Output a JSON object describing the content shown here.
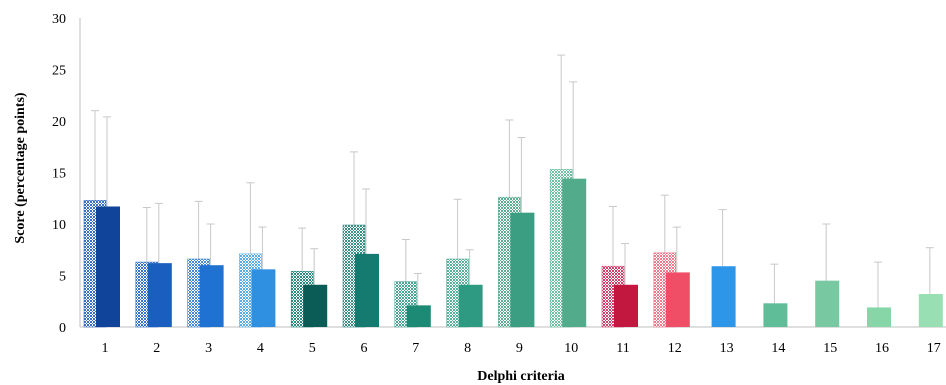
{
  "chart_data": {
    "type": "bar",
    "title": "",
    "xlabel": "Delphi criteria",
    "ylabel": "Score (percentage points)",
    "ylim": [
      0,
      30
    ],
    "yticks": [
      0,
      5,
      10,
      15,
      20,
      25,
      30
    ],
    "grid": false,
    "legend": "none",
    "error_bar_color": "#c8c8c8",
    "categories": [
      "1",
      "2",
      "3",
      "4",
      "5",
      "6",
      "7",
      "8",
      "9",
      "10",
      "11",
      "12",
      "13",
      "14",
      "15",
      "16",
      "17"
    ],
    "series": [
      {
        "pattern": "dotted",
        "values": [
          12.3,
          6.3,
          6.6,
          7.1,
          5.4,
          9.9,
          4.4,
          6.6,
          12.6,
          15.3,
          5.9,
          7.2,
          null,
          null,
          null,
          null,
          null
        ],
        "errors": [
          8.7,
          5.3,
          5.6,
          6.9,
          4.2,
          7.1,
          4.1,
          5.8,
          7.5,
          11.1,
          5.8,
          5.6,
          null,
          null,
          null,
          null,
          null
        ],
        "colors": [
          "#3a6fc4",
          "#3a73c9",
          "#4588d8",
          "#5aaee8",
          "#2d8a80",
          "#3a8f86",
          "#4aa595",
          "#5ab09a",
          "#5cae91",
          "#6fbfa3",
          "#d0426a",
          "#f07a8c",
          null,
          null,
          null,
          null,
          null
        ]
      },
      {
        "pattern": "solid",
        "values": [
          11.7,
          6.2,
          6.0,
          5.6,
          4.1,
          7.1,
          2.1,
          4.1,
          11.1,
          14.4,
          4.1,
          5.3,
          5.9,
          2.3,
          4.5,
          1.9,
          3.2
        ],
        "errors": [
          8.7,
          5.8,
          4.0,
          4.1,
          3.5,
          6.3,
          3.1,
          3.4,
          7.3,
          9.4,
          4.0,
          4.4,
          5.5,
          3.8,
          5.5,
          4.4,
          4.5
        ],
        "colors": [
          "#10439a",
          "#1a5fc0",
          "#1f72d2",
          "#2f8fe0",
          "#0b5c56",
          "#157a70",
          "#1d8a76",
          "#2e9a82",
          "#3b9e82",
          "#52ab8b",
          "#c2173f",
          "#f04e66",
          "#2d96e8",
          "#5fbd98",
          "#78c8a2",
          "#86d6a8",
          "#98e0b4"
        ]
      }
    ]
  }
}
